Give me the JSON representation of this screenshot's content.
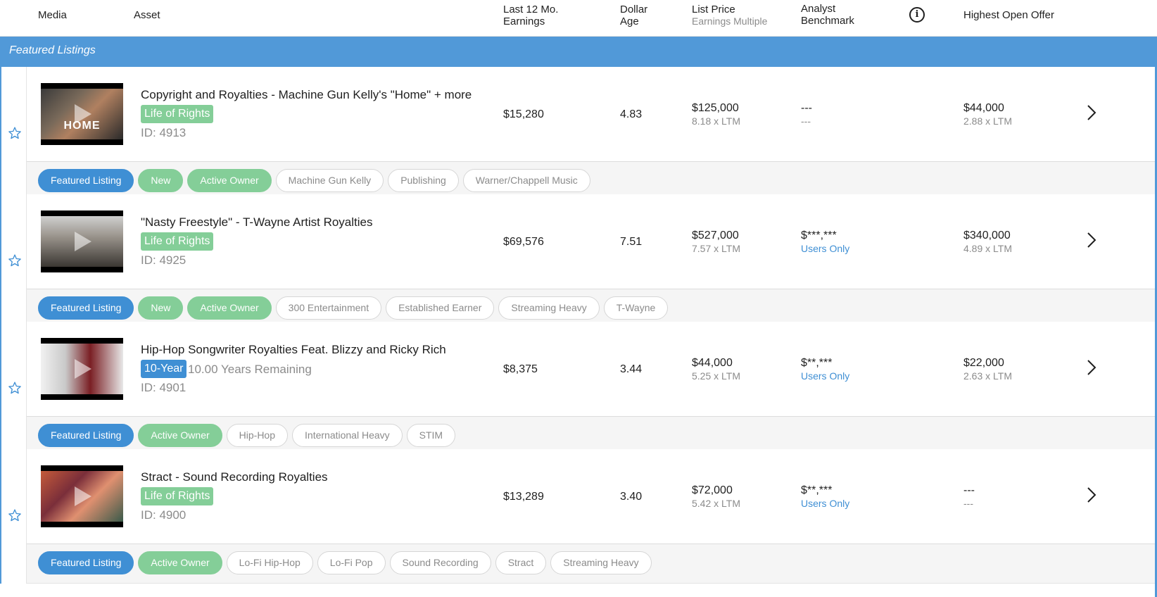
{
  "header": {
    "media": "Media",
    "asset": "Asset",
    "earnings_line1": "Last 12 Mo.",
    "earnings_line2": "Earnings",
    "age_line1": "Dollar",
    "age_line2": "Age",
    "price_line1": "List Price",
    "price_line2": "Earnings Multiple",
    "bench_line1": "Analyst",
    "bench_line2": "Benchmark",
    "info_icon": "i",
    "offer": "Highest Open Offer"
  },
  "section_title": "Featured Listings",
  "listings": [
    {
      "title": "Copyright and Royalties - Machine Gun Kelly's \"Home\" + more",
      "rights": "Life of Rights",
      "remaining": "",
      "id": "ID: 4913",
      "thumb_text": "HOME",
      "earnings": "$15,280",
      "dollar_age": "4.83",
      "price": "$125,000",
      "price_multiple": "8.18 x LTM",
      "benchmark": "---",
      "benchmark_sub": "---",
      "offer": "$44,000",
      "offer_multiple": "2.88 x LTM",
      "tags": [
        "Featured Listing",
        "New",
        "Active Owner",
        "Machine Gun Kelly",
        "Publishing",
        "Warner/Chappell Music"
      ]
    },
    {
      "title": "\"Nasty Freestyle\" - T-Wayne Artist Royalties",
      "rights": "Life of Rights",
      "remaining": "",
      "id": "ID: 4925",
      "thumb_text": "",
      "earnings": "$69,576",
      "dollar_age": "7.51",
      "price": "$527,000",
      "price_multiple": "7.57 x LTM",
      "benchmark": "$***,***",
      "benchmark_sub": "Users Only",
      "offer": "$340,000",
      "offer_multiple": "4.89 x LTM",
      "tags": [
        "Featured Listing",
        "New",
        "Active Owner",
        "300 Entertainment",
        "Established Earner",
        "Streaming Heavy",
        "T-Wayne"
      ]
    },
    {
      "title": "Hip-Hop Songwriter Royalties Feat. Blizzy and Ricky Rich",
      "rights": "10-Year",
      "remaining": "10.00 Years Remaining",
      "id": "ID: 4901",
      "thumb_text": "",
      "earnings": "$8,375",
      "dollar_age": "3.44",
      "price": "$44,000",
      "price_multiple": "5.25 x LTM",
      "benchmark": "$**,***",
      "benchmark_sub": "Users Only",
      "offer": "$22,000",
      "offer_multiple": "2.63 x LTM",
      "tags": [
        "Featured Listing",
        "Active Owner",
        "Hip-Hop",
        "International Heavy",
        "STIM"
      ]
    },
    {
      "title": "Stract - Sound Recording Royalties",
      "rights": "Life of Rights",
      "remaining": "",
      "id": "ID: 4900",
      "thumb_text": "",
      "earnings": "$13,289",
      "dollar_age": "3.40",
      "price": "$72,000",
      "price_multiple": "5.42 x LTM",
      "benchmark": "$**,***",
      "benchmark_sub": "Users Only",
      "offer": "---",
      "offer_multiple": "---",
      "tags": [
        "Featured Listing",
        "Active Owner",
        "Lo-Fi Hip-Hop",
        "Lo-Fi Pop",
        "Sound Recording",
        "Stract",
        "Streaming Heavy"
      ]
    }
  ],
  "colors": {
    "accent": "#5199d8",
    "tag_blue": "#3f8fd4",
    "tag_green": "#84ce98",
    "muted": "#8b8b8b"
  }
}
